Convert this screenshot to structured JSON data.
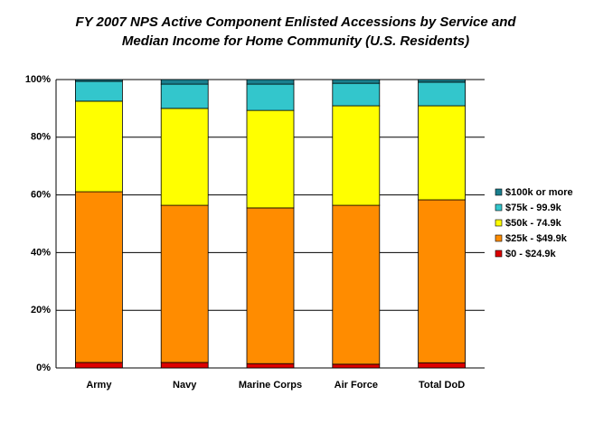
{
  "chart_data": {
    "type": "stacked_bar",
    "title": [
      "FY 2007 NPS Active Component Enlisted Accessions by Service and",
      "Median Income for Home Community (U.S. Residents)"
    ],
    "categories": [
      "Army",
      "Navy",
      "Marine Corps",
      "Air Force",
      "Total DoD"
    ],
    "series": [
      {
        "name": "$0 - $24.9k",
        "color": "#dd0000",
        "values": [
          1.9,
          1.9,
          1.5,
          1.3,
          1.8
        ]
      },
      {
        "name": "$25k - $49.9k",
        "color": "#ff8c00",
        "values": [
          59.2,
          54.5,
          54.0,
          55.1,
          56.5
        ]
      },
      {
        "name": "$50k - 74.9k",
        "color": "#ffff00",
        "values": [
          31.4,
          33.6,
          33.8,
          34.5,
          32.6
        ]
      },
      {
        "name": "$75k - 99.9k",
        "color": "#33c6cc",
        "values": [
          6.9,
          8.4,
          9.1,
          7.8,
          8.2
        ]
      },
      {
        "name": "$100k or more",
        "color": "#1a7f8e",
        "values": [
          0.6,
          1.6,
          1.6,
          1.3,
          0.9
        ]
      }
    ],
    "ylim": [
      0,
      100
    ],
    "yticks": [
      {
        "value": 0,
        "label": "0%"
      },
      {
        "value": 20,
        "label": "20%"
      },
      {
        "value": 40,
        "label": "40%"
      },
      {
        "value": 60,
        "label": "60%"
      },
      {
        "value": 80,
        "label": "80%"
      },
      {
        "value": 100,
        "label": "100%"
      }
    ],
    "grid": true,
    "legend": "right"
  }
}
